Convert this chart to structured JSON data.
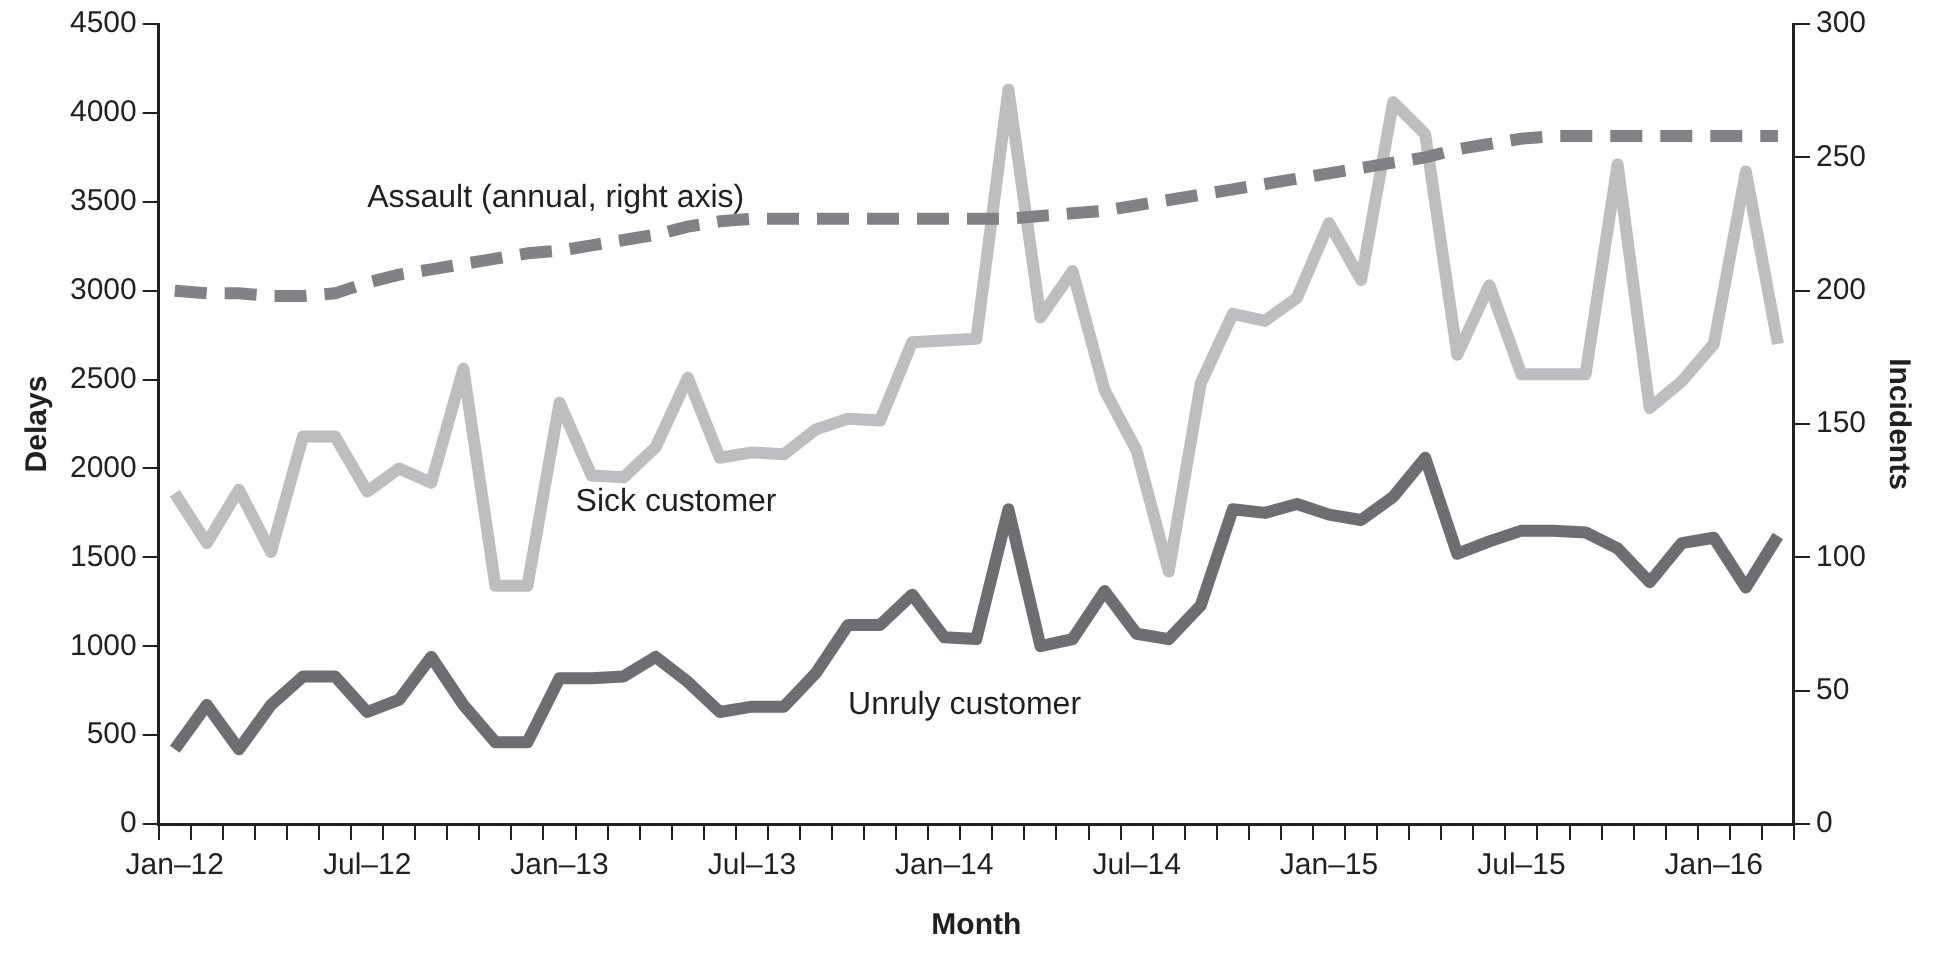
{
  "chart_data": {
    "type": "line",
    "xlabel": "Month",
    "ylabel": "Delays",
    "y2label": "Incidents",
    "categories": [
      "Jan–12",
      null,
      null,
      null,
      null,
      null,
      "Jul–12",
      null,
      null,
      null,
      null,
      null,
      "Jan–13",
      null,
      null,
      null,
      null,
      null,
      "Jul–13",
      null,
      null,
      null,
      null,
      null,
      "Jan–14",
      null,
      null,
      null,
      null,
      null,
      "Jul–14",
      null,
      null,
      null,
      null,
      null,
      "Jan–15",
      null,
      null,
      null,
      null,
      null,
      "Jul–15",
      null,
      null,
      null,
      null,
      null,
      "Jan–16",
      null,
      null
    ],
    "series": [
      {
        "name": "Assault (annual, right axis)",
        "color": "#808285",
        "axis": "y2",
        "line_style": "dashed",
        "values": [
          200,
          199,
          199,
          198,
          198,
          199,
          203,
          206,
          208,
          210,
          212,
          214,
          215,
          217,
          219,
          221,
          224,
          226,
          227,
          227,
          227,
          227,
          227,
          227,
          227,
          227,
          227,
          228,
          229,
          230,
          232,
          234,
          236,
          238,
          240,
          242,
          244,
          246,
          248,
          250,
          253,
          255,
          257,
          258,
          258,
          258,
          258,
          258,
          258,
          258,
          258
        ]
      },
      {
        "name": "Sick customer",
        "color": "#bcbec0",
        "values": [
          1860,
          1580,
          1880,
          1530,
          2180,
          2180,
          1870,
          2000,
          1920,
          2560,
          1340,
          1340,
          2370,
          1960,
          1950,
          2120,
          2510,
          2060,
          2090,
          2080,
          2220,
          2280,
          2270,
          2710,
          2720,
          2730,
          4130,
          2850,
          3110,
          2440,
          2100,
          1420,
          2480,
          2870,
          2830,
          2960,
          3380,
          3060,
          4060,
          3880,
          2640,
          3030,
          2530,
          2530,
          2530,
          3710,
          2340,
          2490,
          2700,
          3670,
          2700
        ]
      },
      {
        "name": "Unruly customer",
        "color": "#6d6e71",
        "values": [
          420,
          670,
          420,
          670,
          830,
          830,
          630,
          700,
          940,
          670,
          460,
          460,
          820,
          820,
          830,
          940,
          800,
          630,
          660,
          660,
          850,
          1120,
          1120,
          1290,
          1050,
          1040,
          1770,
          1000,
          1040,
          1310,
          1070,
          1040,
          1230,
          1770,
          1750,
          1800,
          1740,
          1710,
          1840,
          2060,
          1520,
          1590,
          1650,
          1650,
          1640,
          1550,
          1360,
          1580,
          1610,
          1330,
          1620
        ]
      }
    ],
    "ylim": [
      0,
      4500
    ],
    "yticks": [
      0,
      500,
      1000,
      1500,
      2000,
      2500,
      3000,
      3500,
      4000,
      4500
    ],
    "y2lim": [
      0,
      300
    ],
    "y2ticks": [
      0,
      50,
      100,
      150,
      200,
      250,
      300
    ],
    "grid": false,
    "legend": false,
    "marker": "none",
    "line_style": "solid"
  }
}
